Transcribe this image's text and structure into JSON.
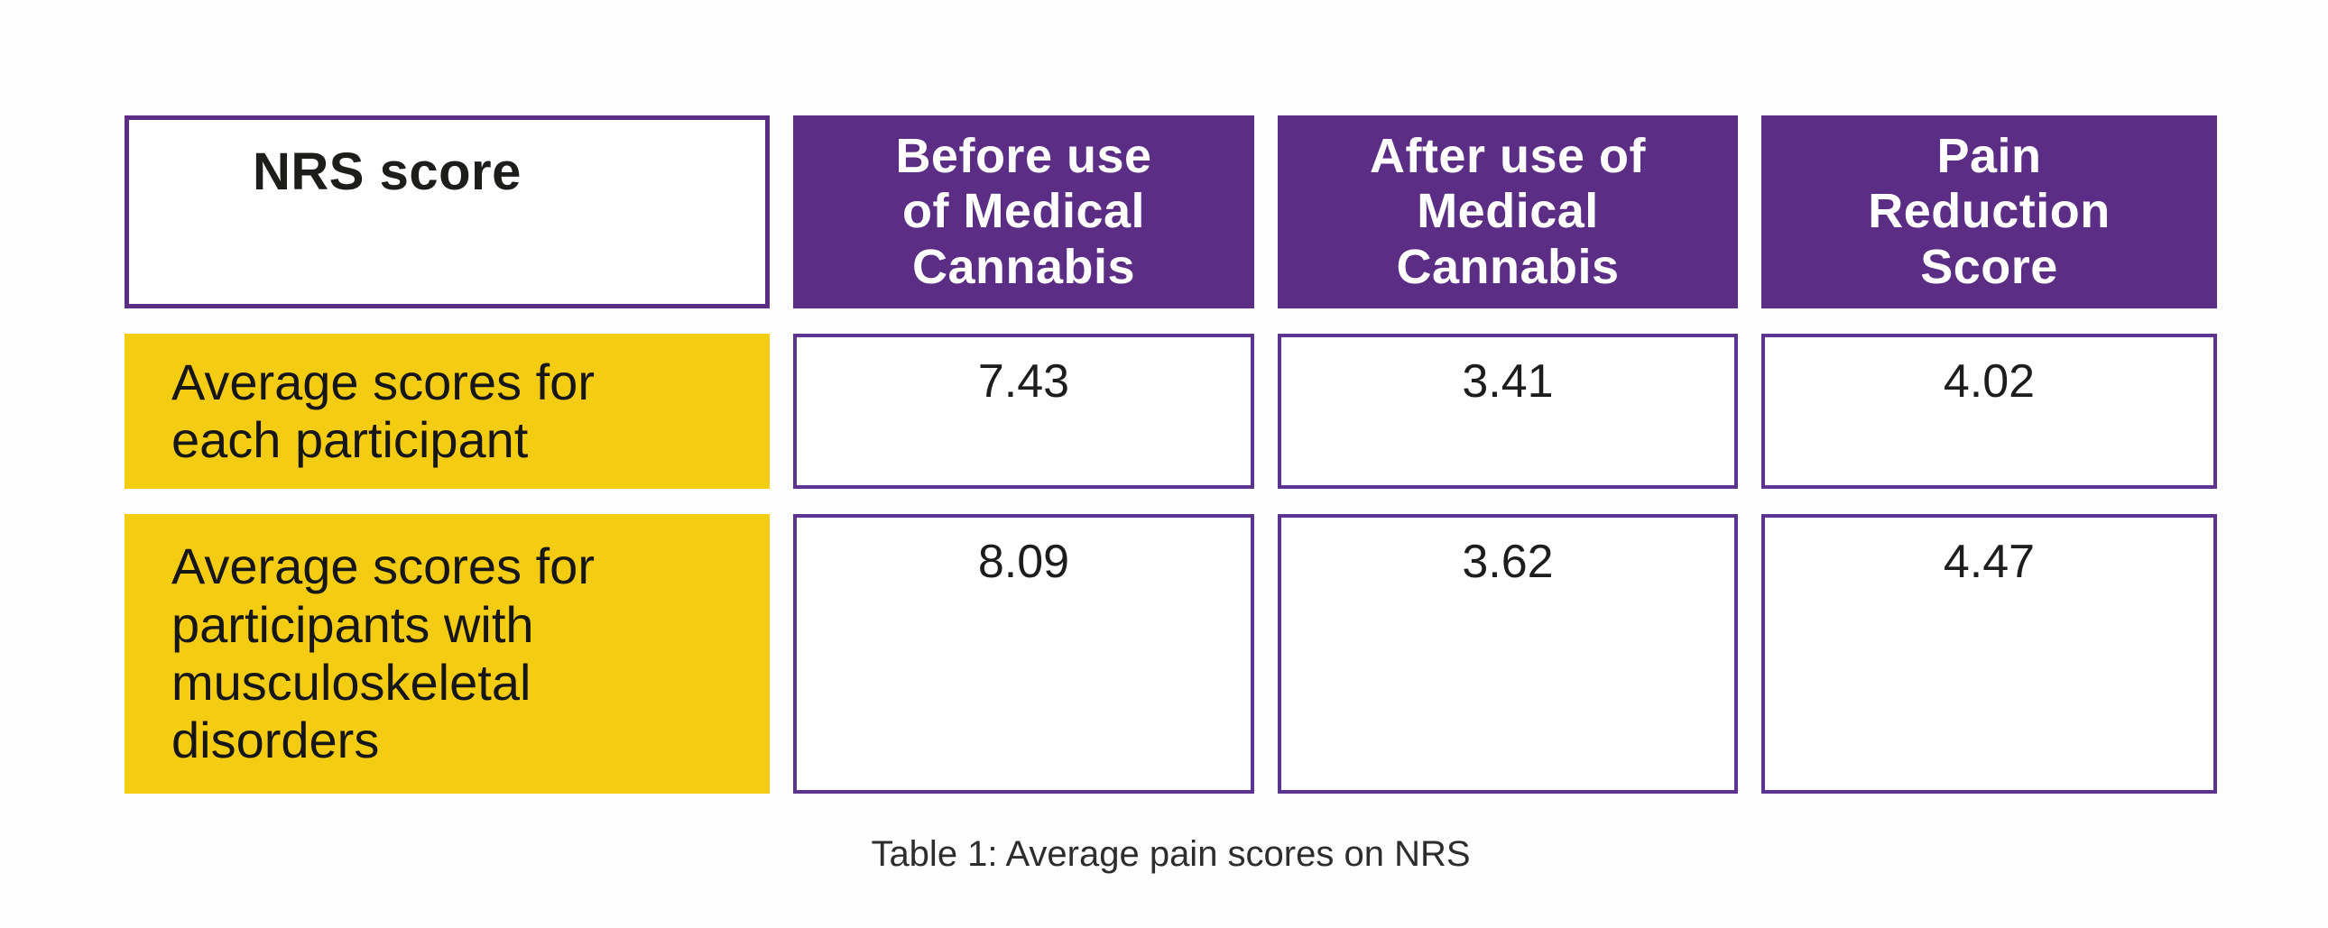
{
  "table": {
    "corner_label": "NRS score",
    "column_headers": [
      "Before use\nof Medical\nCannabis",
      "After use of\nMedical\nCannabis",
      "Pain\nReduction\nScore"
    ],
    "rows": [
      {
        "label": "Average scores for\neach participant",
        "values": [
          "7.43",
          "3.41",
          "4.02"
        ]
      },
      {
        "label": "Average scores for\nparticipants with\nmusculoskeletal\ndisorders",
        "values": [
          "8.09",
          "3.62",
          "4.47"
        ]
      }
    ],
    "caption": "Table 1: Average pain scores on NRS"
  },
  "colors": {
    "header_purple": "#5b2d84",
    "border_purple": "#5c3590",
    "row_label_yellow": "#f4cd12",
    "text_dark": "#1d1d1b",
    "text_white": "#ffffff",
    "caption_text": "#2d2d2d",
    "background": "#fffefe"
  },
  "chart_data": {
    "type": "table",
    "title": "Table 1: Average pain scores on NRS",
    "columns": [
      "NRS score",
      "Before use of Medical Cannabis",
      "After use of Medical Cannabis",
      "Pain Reduction Score"
    ],
    "rows": [
      {
        "label": "Average scores for each participant",
        "before_use": 7.43,
        "after_use": 3.41,
        "pain_reduction": 4.02
      },
      {
        "label": "Average scores for participants with musculoskeletal disorders",
        "before_use": 8.09,
        "after_use": 3.62,
        "pain_reduction": 4.47
      }
    ],
    "layout": "matrix table, purple headers, yellow row labels, white bordered value cells"
  }
}
